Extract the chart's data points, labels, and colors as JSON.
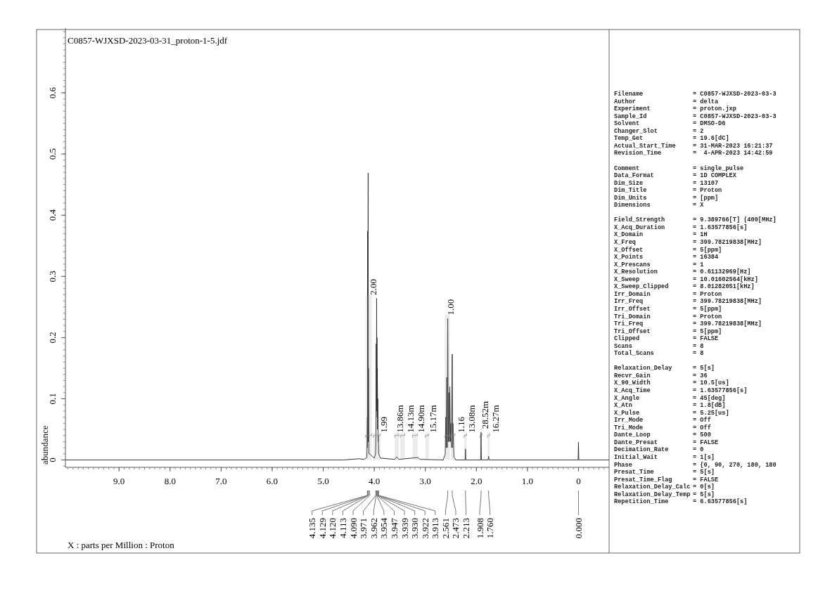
{
  "chart_data": [
    {
      "type": "line",
      "title": "C0857-WJXSD-2023-03-31_proton-1-5.jdf",
      "xlabel": "X : parts per Million : Proton",
      "ylabel": "abundance",
      "color": "#333333",
      "marker": "none",
      "line_style": "solid",
      "grid": false,
      "xlim": [
        10.05,
        -0.6
      ],
      "ylim": [
        -0.012,
        0.7
      ],
      "xticks": [
        {
          "value": 9,
          "label": "9.0"
        },
        {
          "value": 8,
          "label": "8.0"
        },
        {
          "value": 7,
          "label": "7.0"
        },
        {
          "value": 6,
          "label": "6.0"
        },
        {
          "value": 5,
          "label": "5.0"
        },
        {
          "value": 4,
          "label": "4.0"
        },
        {
          "value": 3,
          "label": "3.0"
        },
        {
          "value": 2,
          "label": "2.0"
        },
        {
          "value": 1,
          "label": "1.0"
        },
        0
      ],
      "yticks": [
        0,
        0.1,
        0.2,
        0.3,
        0.4,
        0.5,
        0.6
      ],
      "x": [
        10.05,
        4.6,
        4.3,
        4.2,
        4.145,
        4.135,
        4.132,
        4.129,
        4.125,
        4.12,
        4.116,
        4.113,
        4.105,
        4.09,
        4.0,
        3.975,
        3.971,
        3.966,
        3.962,
        3.958,
        3.954,
        3.95,
        3.947,
        3.943,
        3.939,
        3.935,
        3.93,
        3.926,
        3.922,
        3.913,
        3.88,
        3.6,
        3.56,
        3.52,
        3.15,
        3.1,
        2.65,
        2.61,
        2.6,
        2.59,
        2.58,
        2.57,
        2.561,
        2.55,
        2.54,
        2.53,
        2.52,
        2.51,
        2.5,
        2.49,
        2.473,
        2.465,
        2.46,
        2.44,
        2.4,
        2.22,
        2.213,
        2.206,
        1.915,
        1.908,
        1.901,
        1.77,
        1.76,
        1.75,
        0.007,
        0,
        -0.007,
        -0.6
      ],
      "values": [
        0,
        0,
        0.002,
        0.001,
        0.004,
        0.07,
        0.02,
        0.374,
        0.03,
        0.469,
        0.03,
        0.15,
        0.01,
        0.01,
        0.003,
        0.01,
        0.02,
        0.05,
        0.19,
        0.08,
        0.264,
        0.09,
        0.2,
        0.07,
        0.15,
        0.05,
        0.1,
        0.03,
        0.04,
        0.01,
        0.003,
        0.001,
        0.005,
        0.001,
        0.004,
        0.001,
        0,
        0.01,
        0.07,
        0.02,
        0.135,
        0.02,
        0.231,
        0.03,
        0.11,
        0.03,
        0.12,
        0.03,
        0.06,
        0.02,
        0.173,
        0.02,
        0.06,
        0.005,
        0,
        0,
        0.018,
        0,
        0,
        0.045,
        0,
        0,
        0.006,
        0,
        0,
        0.029,
        0,
        0
      ],
      "bands": [
        {
          "axis": "x",
          "from": 4.17,
          "to": 4.05,
          "label": "2.00"
        },
        {
          "axis": "x",
          "from": 4.02,
          "to": 3.88,
          "label": "1.99"
        },
        {
          "axis": "x",
          "from": 3.6,
          "to": 3.52,
          "label": "13.86m"
        },
        {
          "axis": "x",
          "from": 3.49,
          "to": 3.4,
          "label": "14.13m"
        },
        {
          "axis": "x",
          "from": 3.25,
          "to": 3.15,
          "label": "14.90m"
        },
        {
          "axis": "x",
          "from": 3.0,
          "to": 2.93,
          "label": "15.17m"
        },
        {
          "axis": "x",
          "from": 2.62,
          "to": 2.52,
          "label": "1.00"
        },
        {
          "axis": "x",
          "from": 2.5,
          "to": 2.42,
          "label": "1.16"
        },
        {
          "axis": "x",
          "from": 2.24,
          "to": 2.19,
          "label": "13.08m"
        },
        {
          "axis": "x",
          "from": 1.93,
          "to": 1.89,
          "label": "28.52m"
        },
        {
          "axis": "x",
          "from": 1.78,
          "to": 1.74,
          "label": "16.27m"
        }
      ],
      "annotations": [
        {
          "text": "4.135",
          "x": 4.135
        },
        {
          "text": "4.129",
          "x": 4.129
        },
        {
          "text": "4.120",
          "x": 4.12
        },
        {
          "text": "4.113",
          "x": 4.113
        },
        {
          "text": "4.090",
          "x": 4.09
        },
        {
          "text": "3.971",
          "x": 3.971
        },
        {
          "text": "3.962",
          "x": 3.962
        },
        {
          "text": "3.954",
          "x": 3.954
        },
        {
          "text": "3.947",
          "x": 3.947
        },
        {
          "text": "3.939",
          "x": 3.939
        },
        {
          "text": "3.930",
          "x": 3.93
        },
        {
          "text": "3.922",
          "x": 3.922
        },
        {
          "text": "3.913",
          "x": 3.913
        },
        {
          "text": "2.561",
          "x": 2.561
        },
        {
          "text": "2.473",
          "x": 2.473
        },
        {
          "text": "2.213",
          "x": 2.213
        },
        {
          "text": "1.908",
          "x": 1.908
        },
        {
          "text": "1.760",
          "x": 1.76
        },
        {
          "text": "0.000",
          "x": 0
        }
      ]
    },
    {
      "type": "other",
      "annotations": [
        "Filename",
        "= C0857-WJXSD-2023-03-3",
        "Author",
        "= delta",
        "Experiment",
        "= proton.jxp",
        "Sample_Id",
        "= C0857-WJXSD-2023-03-3",
        "Solvent",
        "= DMSO-D6",
        "Changer_Slot",
        "= 2",
        "Temp_Get",
        "= 19.6[dC]",
        "Actual_Start_Time",
        "= 31-MAR-2023 16:21:37",
        "Revision_Time",
        "=  4-APR-2023 14:42:59"
      ]
    },
    {
      "type": "other",
      "annotations": [
        "Comment",
        "= single_pulse",
        "Data_Format",
        "= 1D COMPLEX",
        "Dim_Size",
        "= 13107",
        "Dim_Title",
        "= Proton",
        "Dim_Units",
        "= [ppm]",
        "Dimensions",
        "= X"
      ]
    },
    {
      "type": "other",
      "annotations": [
        "Field_Strength",
        "= 9.389766[T] (400[MHz]",
        "X_Acq_Duration",
        "= 1.63577856[s]",
        "X_Domain",
        "= 1H",
        "X_Freq",
        "= 399.78219838[MHz]",
        "X_Offset",
        "= 5[ppm]",
        "X_Points",
        "= 16384",
        "X_Prescans",
        "= 1",
        "X_Resolution",
        "= 0.61132969[Hz]",
        "X_Sweep",
        "= 10.01602564[kHz]",
        "X_Sweep_Clipped",
        "= 8.01282051[kHz]",
        "Irr_Domain",
        "= Proton",
        "Irr_Freq",
        "= 399.78219838[MHz]",
        "Irr_Offset",
        "= 5[ppm]",
        "Tri_Domain",
        "= Proton",
        "Tri_Freq",
        "= 399.78219838[MHz]",
        "Tri_Offset",
        "= 5[ppm]",
        "Clipped",
        "= FALSE",
        "Scans",
        "= 8",
        "Total_Scans",
        "= 8"
      ]
    },
    {
      "type": "other",
      "annotations": [
        "Relaxation_Delay",
        "= 5[s]",
        "Recvr_Gain",
        "= 36",
        "X_90_Width",
        "= 10.5[us]",
        "X_Acq_Time",
        "= 1.63577856[s]",
        "X_Angle",
        "= 45[deg]",
        "X_Atn",
        "= 1.8[dB]",
        "X_Pulse",
        "= 5.25[us]",
        "Irr_Mode",
        "= Off",
        "Tri_Mode",
        "= Off",
        "Dante_Loop",
        "= 500",
        "Dante_Presat",
        "= FALSE",
        "Decimation_Rate",
        "= 0",
        "Initial_Wait",
        "= 1[s]",
        "Phase",
        "= {0, 90, 270, 180, 180",
        "Presat_Time",
        "= 5[s]",
        "Presat_Time_Flag",
        "= FALSE",
        "Relaxation_Delay_Calc",
        "= 0[s]",
        "Relaxation_Delay_Temp",
        "= 5[s]",
        "Repetition_Time",
        "= 6.63577856[s]"
      ]
    }
  ]
}
